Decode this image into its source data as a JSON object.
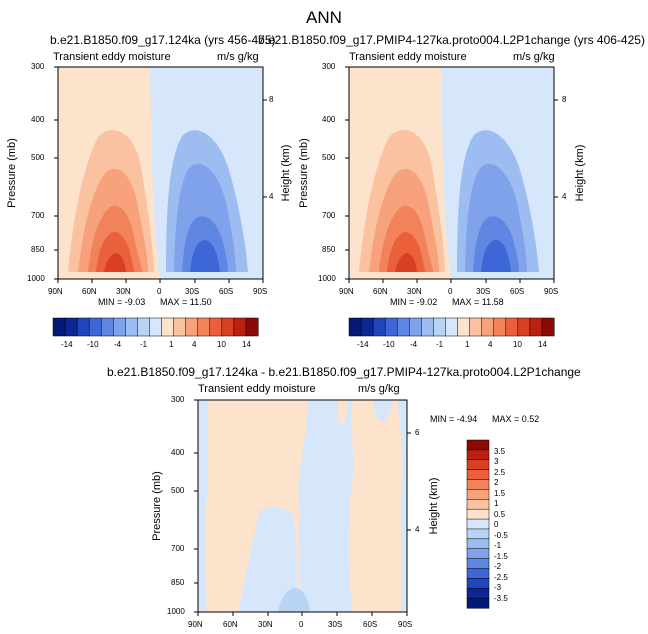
{
  "title": "ANN",
  "chart_data": [
    {
      "type": "contour",
      "title": "b.e21.B1850.f09_g17.124ka (yrs 456-475)",
      "subtitle_left": "Transient eddy moisture",
      "subtitle_right": "m/s g/kg",
      "xticks": [
        "90N",
        "60N",
        "30N",
        "0",
        "30S",
        "60S",
        "90S"
      ],
      "yticks": [
        "300",
        "400",
        "500",
        "700",
        "850",
        "1000"
      ],
      "ylabel": "Pressure (mb)",
      "right_ticks": [
        "8",
        "4"
      ],
      "right_label": "Height (km)",
      "ylim": [
        1000,
        300
      ],
      "min_label": "MIN = -9.03",
      "max_label": "MAX = 11.50",
      "colorbar_labels": [
        "-14",
        "-10",
        "-4",
        "-1",
        "1",
        "4",
        "10",
        "14"
      ]
    },
    {
      "type": "contour",
      "title": "b.e21.B1850.f09_g17.PMIP4-127ka.proto004.L2P1change (yrs 406-425)",
      "subtitle_left": "Transient eddy moisture",
      "subtitle_right": "m/s g/kg",
      "xticks": [
        "90N",
        "60N",
        "30N",
        "0",
        "30S",
        "60S",
        "90S"
      ],
      "yticks": [
        "300",
        "400",
        "500",
        "700",
        "850",
        "1000"
      ],
      "ylabel": "Pressure (mb)",
      "right_ticks": [
        "8",
        "4"
      ],
      "right_label": "Height (km)",
      "ylim": [
        1000,
        300
      ],
      "min_label": "MIN = -9.02",
      "max_label": "MAX = 11.58",
      "colorbar_labels": [
        "-14",
        "-10",
        "-4",
        "-1",
        "1",
        "4",
        "10",
        "14"
      ]
    },
    {
      "type": "contour",
      "title": "b.e21.B1850.f09_g17.124ka - b.e21.B1850.f09_g17.PMIP4-127ka.proto004.L2P1change",
      "subtitle_left": "Transient eddy moisture",
      "subtitle_right": "m/s g/kg",
      "xticks": [
        "90N",
        "60N",
        "30N",
        "0",
        "30S",
        "60S",
        "90S"
      ],
      "yticks": [
        "300",
        "400",
        "500",
        "700",
        "850",
        "1000"
      ],
      "ylabel": "Pressure (mb)",
      "right_ticks": [
        "6",
        "4"
      ],
      "right_label": "Height (km)",
      "ylim": [
        1000,
        300
      ],
      "min_label": "MIN = -4.94",
      "max_label": "MAX =  0.52",
      "colorbar_labels": [
        "3.5",
        "3",
        "2.5",
        "2",
        "1.5",
        "1",
        "0.5",
        "0",
        "-0.5",
        "-1",
        "-1.5",
        "-2",
        "-2.5",
        "-3",
        "-3.5"
      ]
    }
  ],
  "colors": {
    "pos": [
      "#fde2cc",
      "#fbc2a1",
      "#f7a27b",
      "#f2825a",
      "#e9603b",
      "#d83f23",
      "#bb2010",
      "#8c0a05"
    ],
    "neg": [
      "#d6e7fb",
      "#b9d3f5",
      "#9dbcf1",
      "#7fa2ea",
      "#5f86e3",
      "#3d67d6",
      "#1f46bd",
      "#0a2795",
      "#041a78"
    ],
    "div": [
      "#ffffff"
    ]
  }
}
